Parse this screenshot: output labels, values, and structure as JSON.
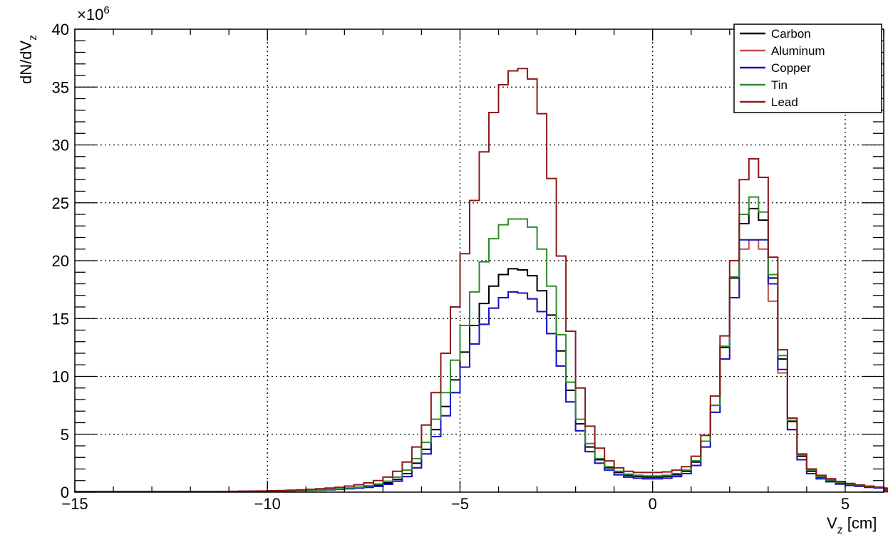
{
  "chart_data": {
    "type": "line",
    "style": "step-histogram",
    "xlabel": "V",
    "xlabel_sub": "z",
    "xlabel_unit": " [cm]",
    "ylabel": "dN/dV",
    "ylabel_sub": "z",
    "y_exponent_base": "×10",
    "y_exponent_power": "6",
    "xlim": [
      -15,
      6
    ],
    "ylim": [
      0,
      40
    ],
    "x_ticks": [
      -15,
      -10,
      -5,
      0,
      5
    ],
    "x_tick_labels": [
      "−15",
      "−10",
      "−5",
      "0",
      "5"
    ],
    "y_ticks": [
      0,
      5,
      10,
      15,
      20,
      25,
      30,
      35,
      40
    ],
    "y_tick_labels": [
      "0",
      "5",
      "10",
      "15",
      "20",
      "25",
      "30",
      "35",
      "40"
    ],
    "grid": true,
    "legend_position": "top-right",
    "x_edges_start": -15,
    "bin_width": 0.25,
    "series": [
      {
        "name": "Carbon",
        "color": "#000000",
        "values": [
          0.05,
          0.05,
          0.05,
          0.05,
          0.05,
          0.05,
          0.05,
          0.05,
          0.05,
          0.05,
          0.05,
          0.05,
          0.05,
          0.05,
          0.05,
          0.06,
          0.06,
          0.07,
          0.07,
          0.08,
          0.09,
          0.1,
          0.12,
          0.14,
          0.16,
          0.19,
          0.22,
          0.27,
          0.33,
          0.4,
          0.5,
          0.6,
          0.8,
          1.1,
          1.6,
          2.5,
          3.7,
          5.4,
          7.4,
          9.7,
          12.1,
          14.4,
          16.3,
          17.8,
          18.8,
          19.3,
          19.2,
          18.7,
          17.4,
          15.3,
          12.2,
          8.8,
          5.9,
          3.9,
          2.8,
          2.1,
          1.7,
          1.45,
          1.35,
          1.3,
          1.3,
          1.35,
          1.5,
          1.8,
          2.6,
          4.4,
          7.5,
          12.5,
          18.5,
          23.2,
          24.5,
          23.5,
          18.5,
          11.5,
          6.1,
          3.1,
          1.8,
          1.3,
          1.0,
          0.8,
          0.65,
          0.55,
          0.47,
          0.4,
          0.33,
          0.28,
          0.23,
          0.19,
          0.16,
          0.13,
          0.11,
          0.09,
          0.08,
          0.07,
          0.06,
          0.06,
          0.05,
          0.05,
          0.05,
          0.05,
          0.05,
          0.05,
          0.05,
          0.05,
          0.05
        ]
      },
      {
        "name": "Aluminum",
        "color": "#c0504d",
        "values": [
          0.05,
          0.05,
          0.05,
          0.05,
          0.05,
          0.05,
          0.05,
          0.05,
          0.05,
          0.05,
          0.05,
          0.05,
          0.05,
          0.05,
          0.05,
          0.06,
          0.06,
          0.07,
          0.07,
          0.08,
          0.09,
          0.1,
          0.11,
          0.13,
          0.15,
          0.17,
          0.2,
          0.24,
          0.29,
          0.35,
          0.42,
          0.5,
          0.68,
          0.95,
          1.35,
          2.1,
          3.3,
          4.8,
          6.6,
          8.6,
          10.8,
          12.8,
          14.5,
          15.9,
          16.8,
          17.3,
          17.2,
          16.7,
          15.6,
          13.7,
          10.9,
          7.8,
          5.3,
          3.5,
          2.5,
          1.9,
          1.5,
          1.3,
          1.2,
          1.15,
          1.15,
          1.2,
          1.35,
          1.6,
          2.3,
          3.9,
          6.9,
          11.5,
          16.8,
          21.0,
          21.8,
          21.0,
          16.5,
          10.3,
          5.4,
          2.8,
          1.6,
          1.15,
          0.9,
          0.7,
          0.58,
          0.5,
          0.42,
          0.36,
          0.3,
          0.25,
          0.2,
          0.17,
          0.14,
          0.12,
          0.1,
          0.08,
          0.07,
          0.06,
          0.06,
          0.05,
          0.05,
          0.05,
          0.05,
          0.05,
          0.05,
          0.05,
          0.05,
          0.05,
          0.05
        ]
      },
      {
        "name": "Copper",
        "color": "#1515c8",
        "values": [
          0.05,
          0.05,
          0.05,
          0.05,
          0.05,
          0.05,
          0.05,
          0.05,
          0.05,
          0.05,
          0.05,
          0.05,
          0.05,
          0.05,
          0.05,
          0.06,
          0.06,
          0.07,
          0.07,
          0.08,
          0.09,
          0.1,
          0.11,
          0.13,
          0.15,
          0.17,
          0.2,
          0.24,
          0.29,
          0.35,
          0.42,
          0.5,
          0.68,
          0.95,
          1.35,
          2.1,
          3.3,
          4.8,
          6.6,
          8.6,
          10.8,
          12.8,
          14.5,
          15.9,
          16.8,
          17.3,
          17.2,
          16.7,
          15.6,
          13.7,
          10.9,
          7.8,
          5.3,
          3.5,
          2.5,
          1.9,
          1.5,
          1.3,
          1.2,
          1.15,
          1.15,
          1.2,
          1.35,
          1.6,
          2.3,
          3.9,
          6.9,
          11.5,
          16.8,
          21.8,
          21.8,
          21.8,
          18.0,
          10.6,
          5.4,
          2.8,
          1.6,
          1.15,
          0.9,
          0.7,
          0.58,
          0.5,
          0.42,
          0.36,
          0.3,
          0.25,
          0.2,
          0.17,
          0.14,
          0.12,
          0.1,
          0.08,
          0.07,
          0.06,
          0.06,
          0.05,
          0.05,
          0.05,
          0.05,
          0.05,
          0.05,
          0.05,
          0.05,
          0.05,
          0.05
        ]
      },
      {
        "name": "Tin",
        "color": "#2e8b2e",
        "values": [
          0.05,
          0.05,
          0.05,
          0.05,
          0.05,
          0.05,
          0.05,
          0.05,
          0.05,
          0.05,
          0.05,
          0.05,
          0.05,
          0.05,
          0.05,
          0.06,
          0.06,
          0.07,
          0.07,
          0.08,
          0.09,
          0.1,
          0.12,
          0.14,
          0.16,
          0.19,
          0.23,
          0.28,
          0.35,
          0.43,
          0.55,
          0.7,
          0.95,
          1.3,
          1.9,
          2.9,
          4.3,
          6.3,
          8.6,
          11.4,
          14.4,
          17.3,
          19.9,
          21.9,
          23.1,
          23.6,
          23.6,
          22.9,
          21.0,
          17.8,
          13.6,
          9.5,
          6.3,
          4.2,
          2.9,
          2.2,
          1.8,
          1.55,
          1.45,
          1.4,
          1.4,
          1.45,
          1.6,
          1.9,
          2.7,
          4.4,
          7.5,
          12.6,
          18.6,
          24.0,
          25.5,
          24.2,
          18.8,
          11.8,
          6.2,
          3.2,
          1.9,
          1.35,
          1.05,
          0.85,
          0.7,
          0.58,
          0.5,
          0.43,
          0.36,
          0.3,
          0.25,
          0.2,
          0.17,
          0.14,
          0.12,
          0.1,
          0.08,
          0.07,
          0.06,
          0.06,
          0.05,
          0.05,
          0.05,
          0.05,
          0.05,
          0.05,
          0.05,
          0.05,
          0.05
        ]
      },
      {
        "name": "Lead",
        "color": "#8b1a1a",
        "values": [
          0.05,
          0.05,
          0.05,
          0.05,
          0.05,
          0.05,
          0.05,
          0.05,
          0.05,
          0.05,
          0.05,
          0.05,
          0.05,
          0.05,
          0.05,
          0.06,
          0.07,
          0.08,
          0.09,
          0.1,
          0.12,
          0.14,
          0.17,
          0.2,
          0.24,
          0.29,
          0.35,
          0.42,
          0.52,
          0.64,
          0.8,
          1.0,
          1.3,
          1.8,
          2.6,
          3.9,
          5.8,
          8.6,
          12.0,
          16.0,
          20.6,
          25.2,
          29.4,
          32.8,
          35.2,
          36.4,
          36.6,
          35.7,
          32.7,
          27.1,
          20.4,
          13.9,
          9.0,
          5.7,
          3.8,
          2.7,
          2.1,
          1.8,
          1.7,
          1.7,
          1.7,
          1.75,
          1.9,
          2.2,
          3.1,
          4.9,
          8.3,
          13.5,
          20.0,
          27.0,
          28.8,
          27.2,
          20.3,
          12.3,
          6.4,
          3.3,
          2.0,
          1.45,
          1.15,
          0.92,
          0.75,
          0.62,
          0.52,
          0.44,
          0.37,
          0.31,
          0.26,
          0.21,
          0.18,
          0.15,
          0.12,
          0.1,
          0.09,
          0.08,
          0.07,
          0.06,
          0.06,
          0.05,
          0.05,
          0.05,
          0.05,
          0.05,
          0.05,
          0.05,
          0.05
        ]
      }
    ]
  }
}
